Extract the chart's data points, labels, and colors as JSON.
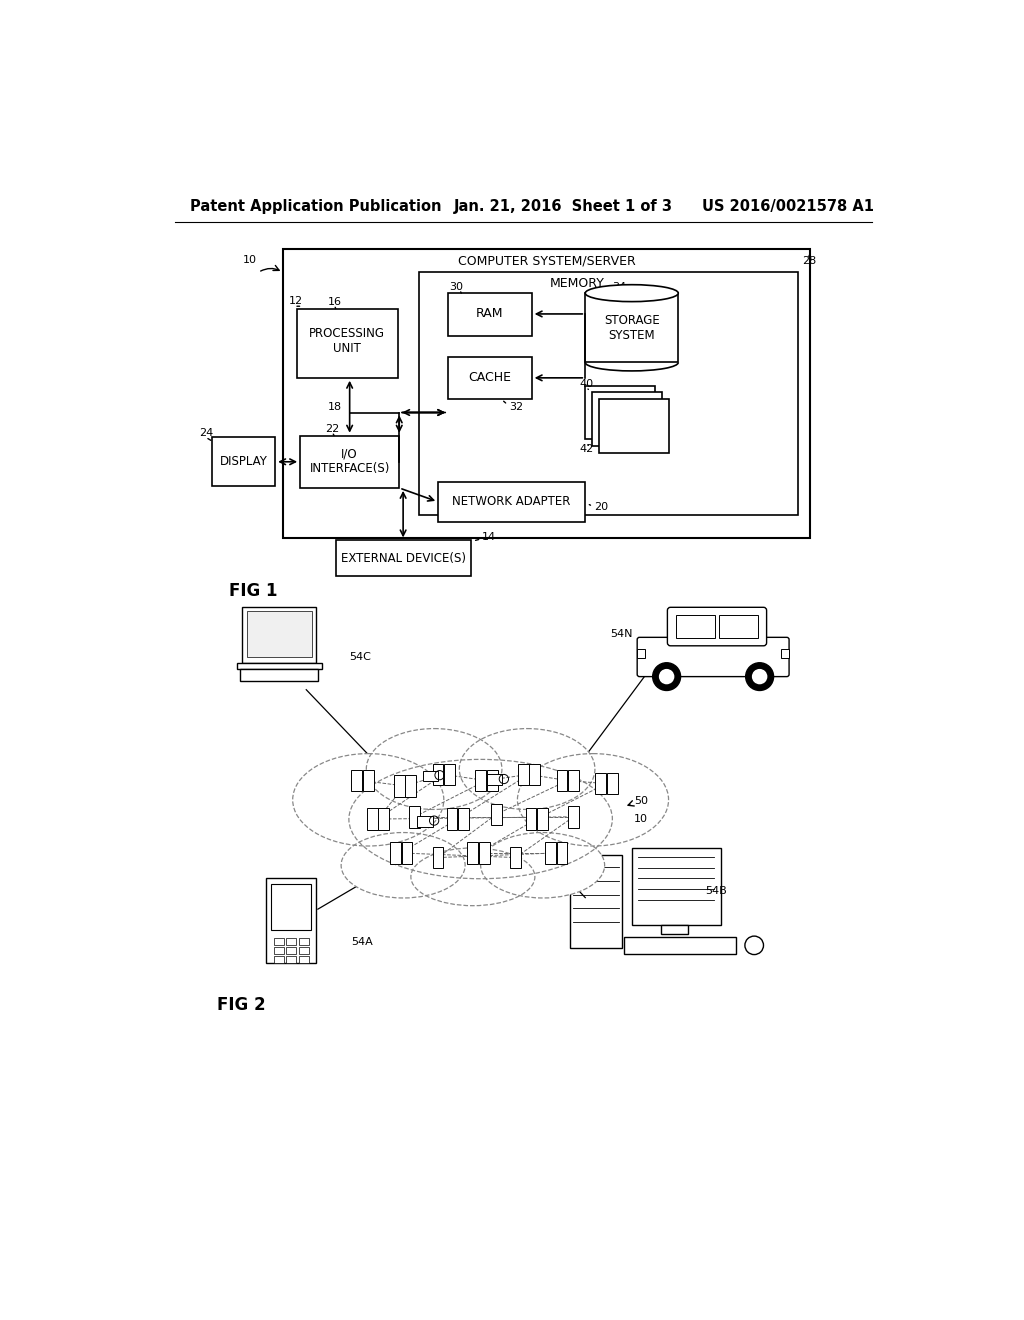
{
  "bg_color": "#ffffff",
  "header_text": "Patent Application Publication",
  "header_date": "Jan. 21, 2016  Sheet 1 of 3",
  "header_patent": "US 2016/0021578 A1",
  "fig1_label": "FIG 1",
  "fig2_label": "FIG 2",
  "header_fontsize": 10.5,
  "body_fontsize": 8.5,
  "small_fontsize": 8
}
